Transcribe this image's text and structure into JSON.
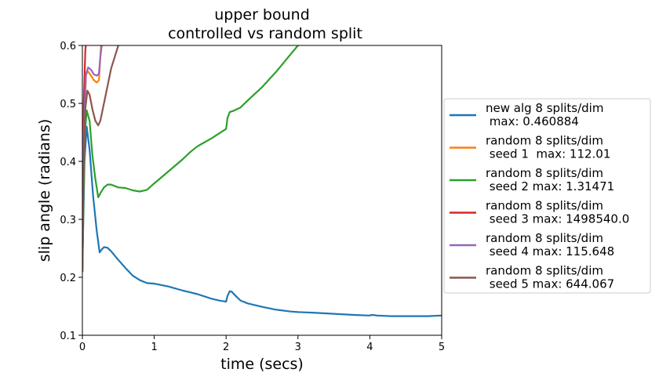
{
  "chart_data": {
    "type": "line",
    "title": [
      "upper bound",
      "controlled vs random split"
    ],
    "xlabel": "time (secs)",
    "ylabel": "slip angle (radians)",
    "xlim": [
      0,
      5
    ],
    "ylim": [
      0.1,
      0.6
    ],
    "xticks": [
      0,
      1,
      2,
      3,
      4,
      5
    ],
    "xtick_labels": [
      "0",
      "1",
      "2",
      "3",
      "4",
      "5"
    ],
    "yticks": [
      0.1,
      0.2,
      0.3,
      0.4,
      0.5,
      0.6
    ],
    "ytick_labels": [
      "0.1",
      "0.2",
      "0.3",
      "0.4",
      "0.5",
      "0.6"
    ],
    "grid": false,
    "legend_position": "outside-right",
    "series": [
      {
        "name": "new alg 8 splits/dim\n max: 0.460884",
        "color": "#1f77b4",
        "x": [
          0.0,
          0.03,
          0.06,
          0.1,
          0.15,
          0.2,
          0.24,
          0.27,
          0.3,
          0.35,
          0.4,
          0.5,
          0.6,
          0.7,
          0.8,
          0.9,
          1.0,
          1.2,
          1.4,
          1.5,
          1.6,
          1.7,
          1.8,
          1.9,
          2.0,
          2.02,
          2.05,
          2.08,
          2.1,
          2.15,
          2.2,
          2.3,
          2.5,
          2.7,
          2.9,
          3.0,
          3.2,
          3.5,
          3.8,
          4.0,
          4.02,
          4.05,
          4.1,
          4.3,
          4.5,
          4.8,
          5.0
        ],
        "y": [
          0.215,
          0.4,
          0.46,
          0.42,
          0.34,
          0.28,
          0.243,
          0.248,
          0.252,
          0.251,
          0.245,
          0.23,
          0.216,
          0.203,
          0.195,
          0.19,
          0.189,
          0.184,
          0.177,
          0.174,
          0.171,
          0.167,
          0.163,
          0.16,
          0.158,
          0.168,
          0.176,
          0.175,
          0.172,
          0.166,
          0.16,
          0.155,
          0.149,
          0.144,
          0.141,
          0.14,
          0.139,
          0.137,
          0.135,
          0.134,
          0.135,
          0.135,
          0.134,
          0.133,
          0.133,
          0.133,
          0.134
        ]
      },
      {
        "name": "random 8 splits/dim\n seed 1  max: 112.01",
        "color": "#ff7f0e",
        "x": [
          0.0,
          0.02,
          0.05,
          0.08,
          0.12,
          0.16,
          0.2,
          0.23,
          0.25,
          0.27
        ],
        "y": [
          0.21,
          0.45,
          0.55,
          0.555,
          0.548,
          0.54,
          0.536,
          0.54,
          0.58,
          0.62
        ]
      },
      {
        "name": "random 8 splits/dim\n seed 2 max: 1.31471",
        "color": "#2ca02c",
        "x": [
          0.0,
          0.03,
          0.06,
          0.1,
          0.14,
          0.18,
          0.22,
          0.25,
          0.3,
          0.35,
          0.4,
          0.5,
          0.6,
          0.7,
          0.8,
          0.9,
          1.0,
          1.2,
          1.4,
          1.5,
          1.6,
          1.8,
          2.0,
          2.02,
          2.05,
          2.1,
          2.2,
          2.3,
          2.5,
          2.7,
          2.9,
          3.0,
          3.1
        ],
        "y": [
          0.21,
          0.44,
          0.488,
          0.47,
          0.41,
          0.37,
          0.338,
          0.345,
          0.355,
          0.36,
          0.36,
          0.355,
          0.354,
          0.35,
          0.348,
          0.351,
          0.362,
          0.383,
          0.404,
          0.416,
          0.426,
          0.44,
          0.456,
          0.475,
          0.485,
          0.487,
          0.493,
          0.505,
          0.528,
          0.555,
          0.585,
          0.6,
          0.62
        ]
      },
      {
        "name": "random 8 splits/dim\n seed 3 max: 1498540.0",
        "color": "#d62728",
        "x": [
          0.0,
          0.02,
          0.04,
          0.06
        ],
        "y": [
          0.21,
          0.5,
          0.59,
          0.62
        ]
      },
      {
        "name": "random 8 splits/dim\n seed 4 max: 115.648",
        "color": "#9467bd",
        "x": [
          0.0,
          0.02,
          0.05,
          0.08,
          0.12,
          0.16,
          0.2,
          0.23,
          0.25,
          0.27,
          0.29
        ],
        "y": [
          0.21,
          0.45,
          0.55,
          0.562,
          0.558,
          0.55,
          0.548,
          0.551,
          0.58,
          0.6,
          0.62
        ]
      },
      {
        "name": "random 8 splits/dim\n seed 5 max: 644.067",
        "color": "#8c564b",
        "x": [
          0.0,
          0.02,
          0.04,
          0.07,
          0.1,
          0.14,
          0.18,
          0.22,
          0.25,
          0.3,
          0.35,
          0.4,
          0.45,
          0.5,
          0.55
        ],
        "y": [
          0.21,
          0.4,
          0.49,
          0.522,
          0.515,
          0.49,
          0.47,
          0.462,
          0.47,
          0.5,
          0.53,
          0.56,
          0.58,
          0.6,
          0.62
        ]
      }
    ]
  }
}
